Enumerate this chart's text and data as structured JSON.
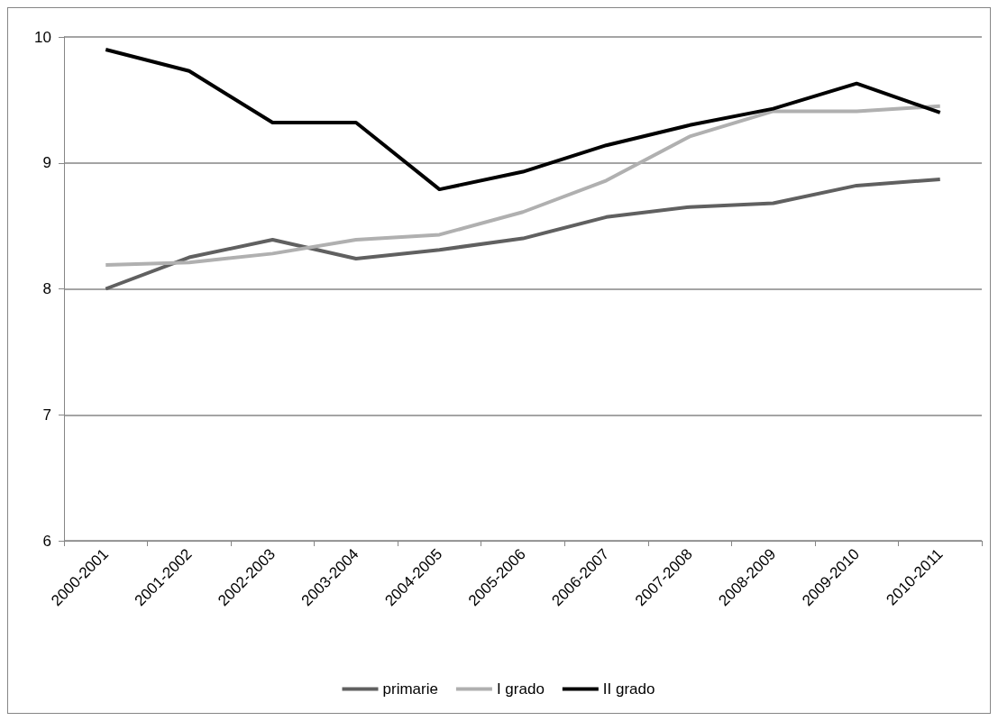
{
  "chart_data": {
    "type": "line",
    "categories": [
      "2000-2001",
      "2001-2002",
      "2002-2003",
      "2003-2004",
      "2004-2005",
      "2005-2006",
      "2006-2007",
      "2007-2008",
      "2008-2009",
      "2009-2010",
      "2010-2011"
    ],
    "series": [
      {
        "name": "primarie",
        "color": "#606060",
        "values": [
          8.0,
          8.25,
          8.39,
          8.24,
          8.31,
          8.4,
          8.57,
          8.65,
          8.68,
          8.82,
          8.87
        ]
      },
      {
        "name": "I grado",
        "color": "#b0b0b0",
        "values": [
          8.19,
          8.21,
          8.28,
          8.39,
          8.43,
          8.61,
          8.86,
          9.21,
          9.41,
          9.41,
          9.45
        ]
      },
      {
        "name": "II grado",
        "color": "#000000",
        "values": [
          9.9,
          9.73,
          9.32,
          9.32,
          8.79,
          8.93,
          9.14,
          9.3,
          9.43,
          9.63,
          9.4
        ]
      }
    ],
    "ylim": [
      6,
      10
    ],
    "yticks": [
      6,
      7,
      8,
      9,
      10
    ],
    "grid": "y",
    "legend": "bottom",
    "marker": "none",
    "line_style": "solid"
  }
}
